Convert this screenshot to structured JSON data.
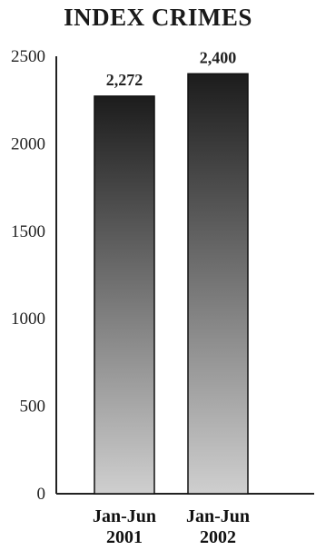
{
  "chart_data": {
    "type": "bar",
    "title": "INDEX CRIMES",
    "categories": [
      "Jan-Jun 2001",
      "Jan-Jun 2002"
    ],
    "category_lines": [
      [
        "Jan-Jun",
        "2001"
      ],
      [
        "Jan-Jun",
        "2002"
      ]
    ],
    "values": [
      2272,
      2400
    ],
    "value_labels": [
      "2,272",
      "2,400"
    ],
    "ylim": [
      0,
      2500
    ],
    "yticks": [
      0,
      500,
      1000,
      1500,
      2000,
      2500
    ],
    "grid": false,
    "bar_gradient": {
      "top": "#1c1c1c",
      "bottom": "#cfcfcf"
    }
  }
}
